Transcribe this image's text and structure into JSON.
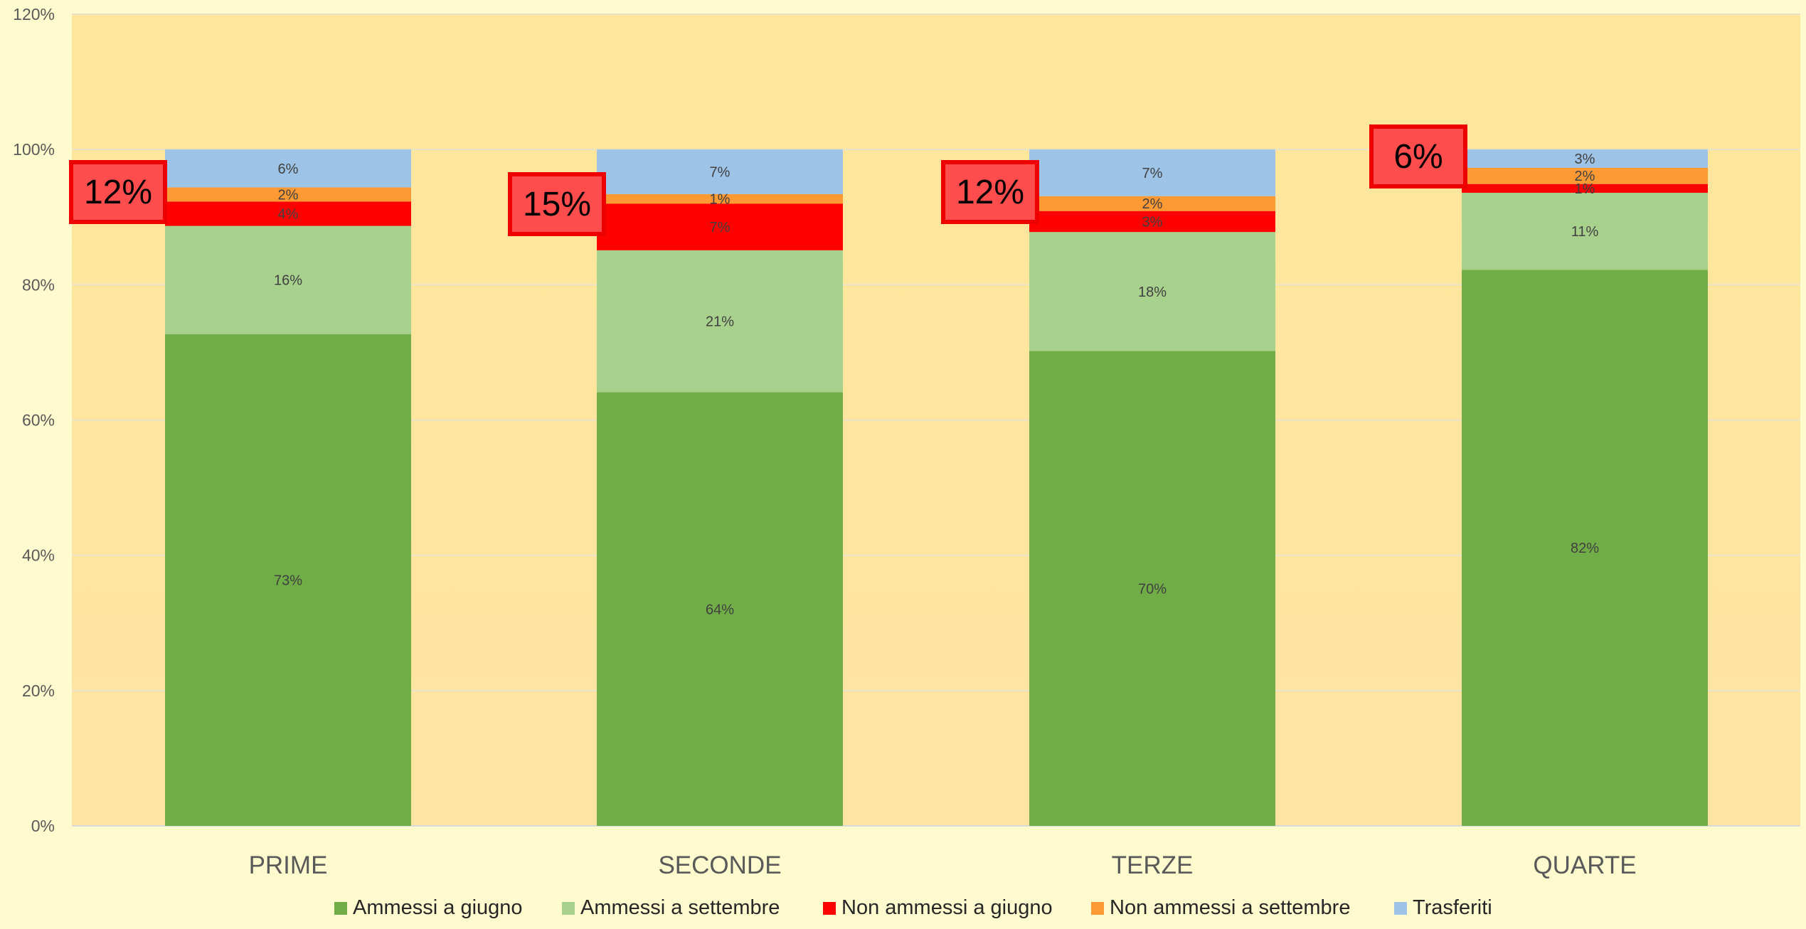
{
  "chart_data": {
    "type": "bar",
    "stacked": true,
    "normalized_percent": true,
    "categories": [
      "PRIME",
      "SECONDE",
      "TERZE",
      "QUARTE"
    ],
    "series": [
      {
        "name": "Ammessi a giugno",
        "color": "#70ad47",
        "values": [
          72.7,
          64.1,
          70.2,
          82.2
        ],
        "labels": [
          "73%",
          "64%",
          "70%",
          "82%"
        ]
      },
      {
        "name": "Ammessi a settembre",
        "color": "#a9d18e",
        "values": [
          16.0,
          21.0,
          17.6,
          11.4
        ],
        "labels": [
          "16%",
          "21%",
          "18%",
          "11%"
        ]
      },
      {
        "name": "Non ammessi a giugno",
        "color": "#ff0000",
        "values": [
          3.6,
          6.9,
          3.1,
          1.3
        ],
        "labels": [
          "4%",
          "7%",
          "3%",
          "1%"
        ]
      },
      {
        "name": "Non ammessi a settembre",
        "color": "#ff9933",
        "values": [
          2.1,
          1.4,
          2.2,
          2.4
        ],
        "labels": [
          "2%",
          "1%",
          "2%",
          "2%"
        ]
      },
      {
        "name": "Trasferiti",
        "color": "#9dc3e6",
        "values": [
          5.6,
          6.6,
          6.9,
          2.7
        ],
        "labels": [
          "6%",
          "7%",
          "7%",
          "3%"
        ]
      }
    ],
    "yaxis": {
      "ticks": [
        0,
        20,
        40,
        60,
        80,
        100,
        120
      ],
      "tick_labels": [
        "0%",
        "20%",
        "40%",
        "60%",
        "80%",
        "100%",
        "120%"
      ],
      "ylim": [
        0,
        120
      ]
    },
    "grid": true,
    "legend": "bottom",
    "annotations": [
      {
        "category": "PRIME",
        "text": "12%"
      },
      {
        "category": "SECONDE",
        "text": "15%"
      },
      {
        "category": "TERZE",
        "text": "12%"
      },
      {
        "category": "QUARTE",
        "text": "6%"
      }
    ],
    "colors": {
      "page_background": "#fffbcf",
      "plot_background": "#ffe69c",
      "gridline": "#e9e2c8",
      "annotation_fill": "#ff4d4d",
      "annotation_border": "#ee0000",
      "axis_text": "#595959",
      "data_label_text": "#404040"
    }
  }
}
